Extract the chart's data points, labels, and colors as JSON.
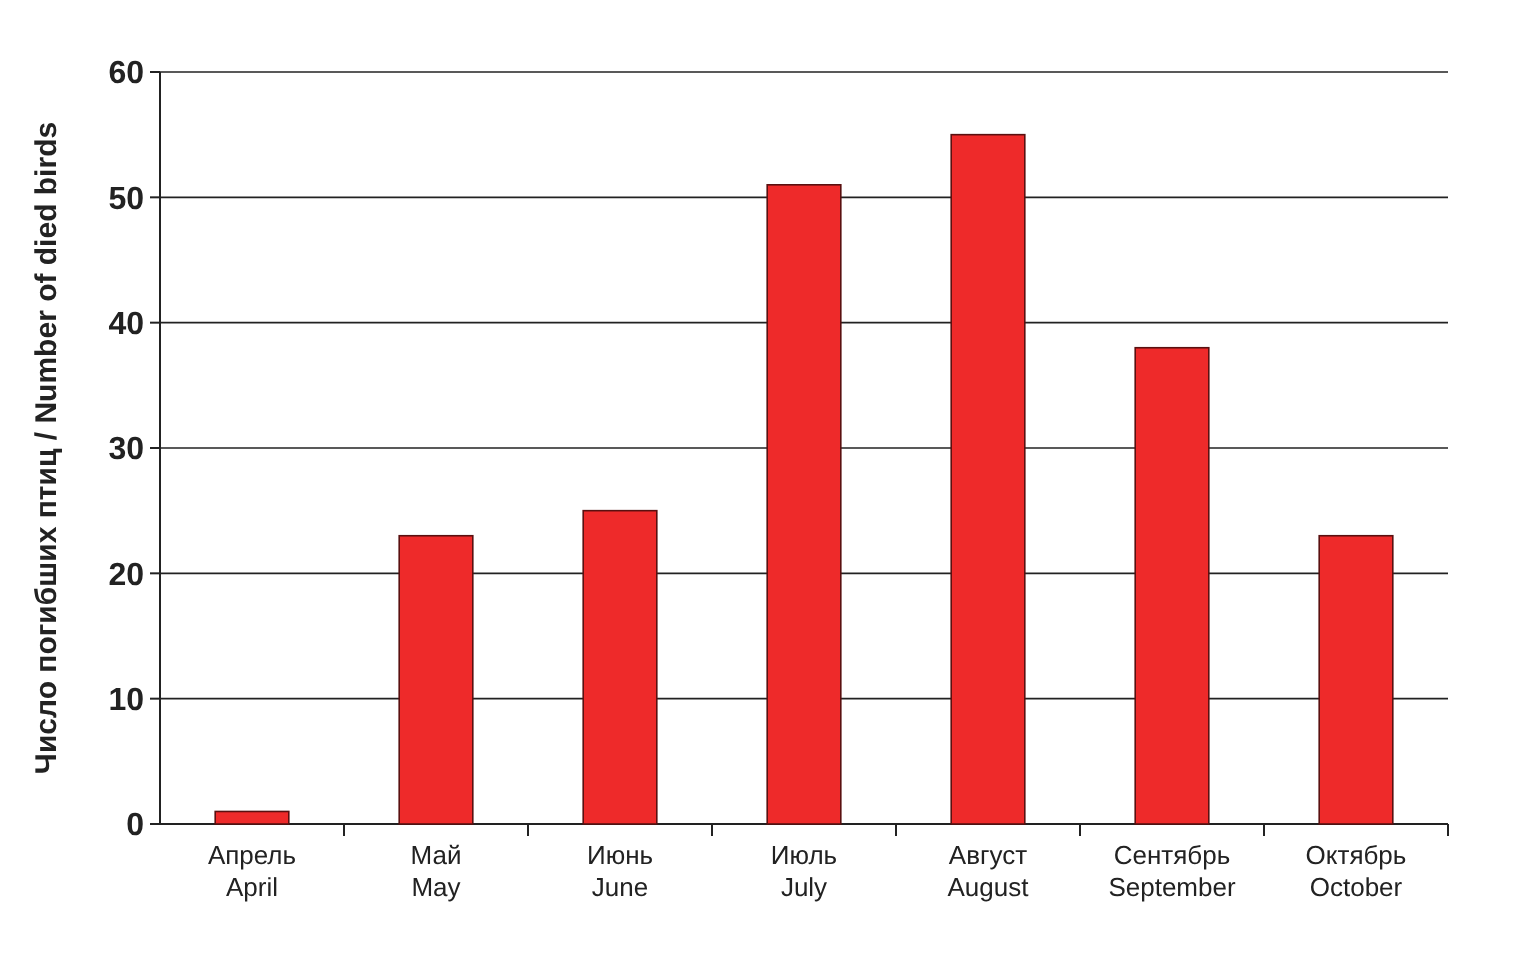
{
  "chart_data": {
    "type": "bar",
    "ylabel": "Число погибших птиц / Number of died birds",
    "categories": [
      "Апрель\nApril",
      "Май\nMay",
      "Июнь\nJune",
      "Июль\nJuly",
      "Август\nAugust",
      "Сентябрь\nSeptember",
      "Октябрь\nOctober"
    ],
    "values": [
      1,
      23,
      25,
      51,
      55,
      38,
      23
    ],
    "color": "#ee2a2a",
    "ylim": [
      0,
      60
    ],
    "yticks": [
      0,
      10,
      20,
      30,
      40,
      50,
      60
    ],
    "grid": "y"
  }
}
